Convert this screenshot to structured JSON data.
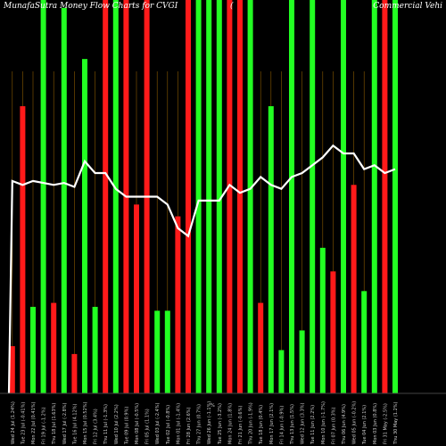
{
  "title_left": "MunafaSutra Money Flow Charts for CVGI",
  "title_mid": "(",
  "title_right": "Commercial Vehi",
  "chart_data": {
    "type": "bar",
    "title": "MunafaSutra Money Flow Charts for CVGI",
    "ylim": [
      0,
      100
    ],
    "grid": "vertical lines",
    "categories": [
      "Wed 24 Jul",
      "Tue 23 Jul",
      "Mon 22 Jul",
      "Fri 19 Jul",
      "Thu 18 Jul",
      "Wed 17 Jul",
      "Tue 16 Jul",
      "Mon 15 Jul",
      "Fri 12 Jul",
      "Thu 11 Jul",
      "Wed 10 Jul",
      "Tue 09 Jul",
      "Mon 08 Jul",
      "Fri 05 Jul",
      "Wed 03 Jul",
      "Tue 02 Jul",
      "Mon 01 Jul",
      "Fri 28 Jun",
      "Thu 27 Jun",
      "Wed 26 Jun",
      "Tue 25 Jun",
      "Mon 24 Jun",
      "Fri 21 Jun",
      "Thu 20 Jun",
      "Tue 18 Jun",
      "Mon 17 Jun",
      "Fri 14 Jun",
      "Thu 13 Jun",
      "Wed 12 Jun",
      "Tue 11 Jun",
      "Mon 10 Jun",
      "Fri 07 Jun",
      "Thu 06 Jun",
      "Wed 05 Jun",
      "Tue 04 Jun",
      "Mon 03 Jun",
      "Fri 31 May",
      "Thu 30 May"
    ],
    "tick_labels": [
      "Wed 24 Jul (1.24%)",
      "Tue 23 Jul (-0.41%)",
      "Mon 22 Jul (0.41%)",
      "Fri 19 Jul (-1.2%)",
      "Thu 18 Jul (1.63%)",
      "Wed 17 Jul (-2.8%)",
      "Tue 16 Jul (4.12%)",
      "Mon 15 Jul (0.52%)",
      "Fri 12 Jul (3.4%)",
      "Thu 11 Jul (-1.3%)",
      "Wed 10 Jul (2.2%)",
      "Tue 09 Jul (0.9%)",
      "Mon 08 Jul (-0.5%)",
      "Fri 05 Jul (1.1%)",
      "Wed 03 Jul (-2.4%)",
      "Tue 02 Jul (-0.8%)",
      "Mon 01 Jul (-1.4%)",
      "Fri 28 Jun (2.6%)",
      "Thu 27 Jun (0.7%)",
      "Wed 26 Jun (-1.1%)",
      "Tue 25 Jun (-3.2%)",
      "Mon 24 Jun (1.8%)",
      "Fri 21 Jun (-0.6%)",
      "Thu 20 Jun (-1.9%)",
      "Tue 18 Jun (0.4%)",
      "Mon 17 Jun (2.1%)",
      "Fri 14 Jun (-0.9%)",
      "Thu 13 Jun (1.5%)",
      "Wed 12 Jun (3.3%)",
      "Tue 11 Jun (2.2%)",
      "Mon 10 Jun (-1.7%)",
      "Fri 07 Jun (0.3%)",
      "Thu 06 Jun (4.9%)",
      "Wed 05 Jun (-0.2%)",
      "Tue 04 Jun (2.1%)",
      "Mon 03 Jun (0.8%)",
      "Fri 31 May (-2.5%)",
      "Thu 30 May (1.2%)"
    ],
    "series": [
      {
        "type": "bar",
        "colors": [
          "red",
          "red",
          "green",
          "green",
          "red",
          "green",
          "red",
          "green",
          "green",
          "red",
          "green",
          "red",
          "red",
          "red",
          "green",
          "green",
          "red",
          "red",
          "green",
          "green",
          "green",
          "red",
          "red",
          "green",
          "red",
          "green",
          "green",
          "green",
          "green",
          "green",
          "green",
          "red",
          "green",
          "red",
          "green",
          "green",
          "red",
          "green"
        ],
        "values": [
          12,
          73,
          22,
          100,
          23,
          98,
          10,
          85,
          22,
          100,
          100,
          100,
          48,
          100,
          21,
          21,
          45,
          100,
          100,
          100,
          100,
          100,
          100,
          100,
          23,
          73,
          11,
          100,
          16,
          100,
          37,
          31,
          100,
          53,
          26,
          100,
          100,
          100
        ]
      },
      {
        "type": "line",
        "color": "white",
        "values": [
          54,
          53,
          54,
          53.5,
          53,
          53.5,
          52.5,
          59,
          56,
          56,
          52,
          50,
          50,
          50,
          50,
          48,
          42,
          40,
          49,
          49,
          49,
          53,
          51,
          52,
          55,
          53,
          52,
          55,
          56,
          58,
          60,
          63,
          61,
          61,
          57,
          58,
          56,
          57
        ]
      }
    ],
    "mid_marker": "%"
  }
}
